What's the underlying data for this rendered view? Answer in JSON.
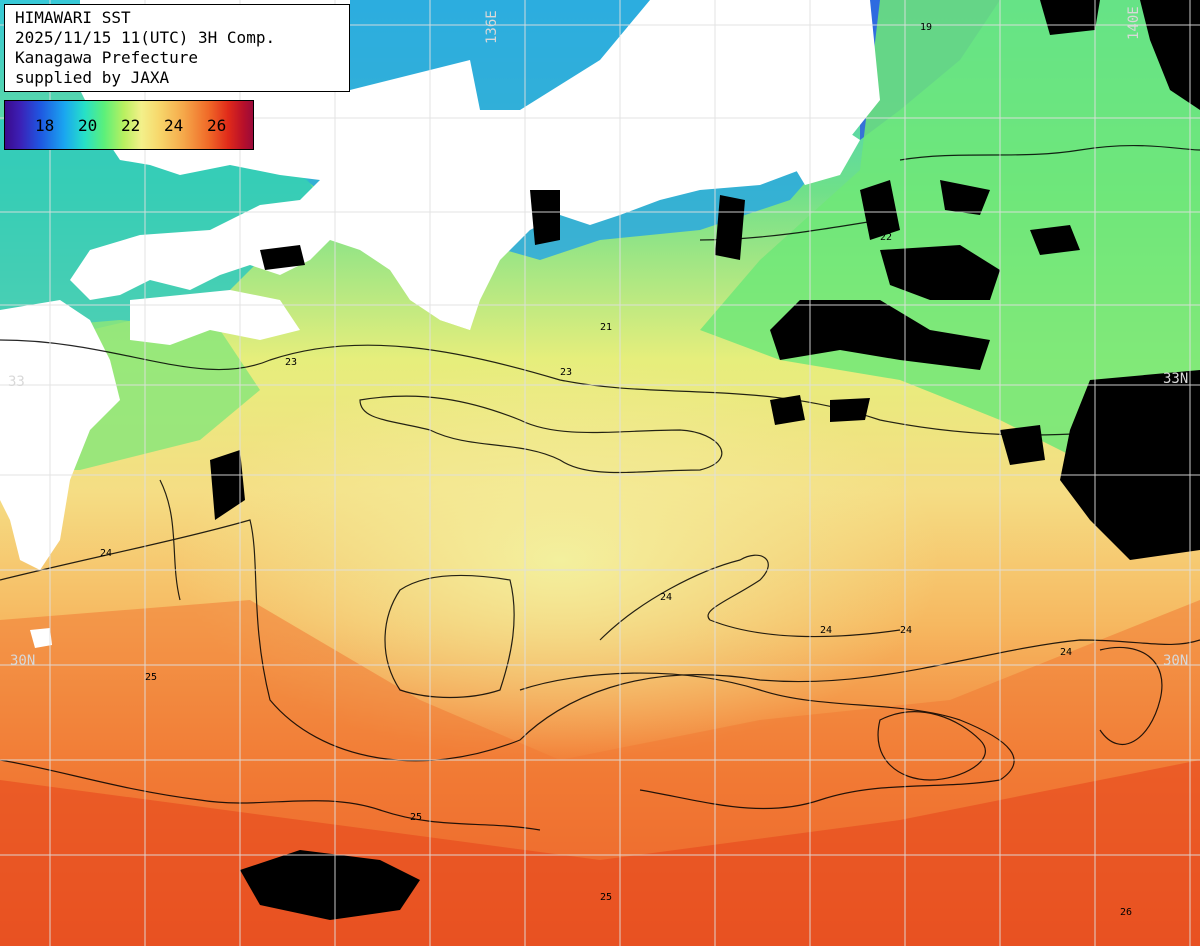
{
  "header": {
    "line1": "HIMAWARI SST",
    "line2": "2025/11/15 11(UTC) 3H Comp.",
    "line3": "Kanagawa Prefecture",
    "line4": "supplied by JAXA"
  },
  "colorbar": {
    "labels": [
      "18",
      "20",
      "22",
      "24",
      "26"
    ],
    "colors": [
      "#3a0a8c",
      "#1f55e0",
      "#26e0c8",
      "#b9f060",
      "#f3f08a",
      "#f5a84a",
      "#e02a1a",
      "#9b0a3a"
    ]
  },
  "grid": {
    "lon_top_1": "136E",
    "lon_top_2": "140E",
    "lat_right_1": "33N",
    "lat_right_2": "30N",
    "lat_left_1": "33",
    "lat_left_2": "30N"
  },
  "contour_labels": [
    "23",
    "24",
    "25",
    "26",
    "22",
    "21",
    "19"
  ],
  "colors": {
    "land": "#ffffff",
    "cloud": "#000000",
    "grid": "#e0e0e0",
    "contour": "#000000"
  }
}
